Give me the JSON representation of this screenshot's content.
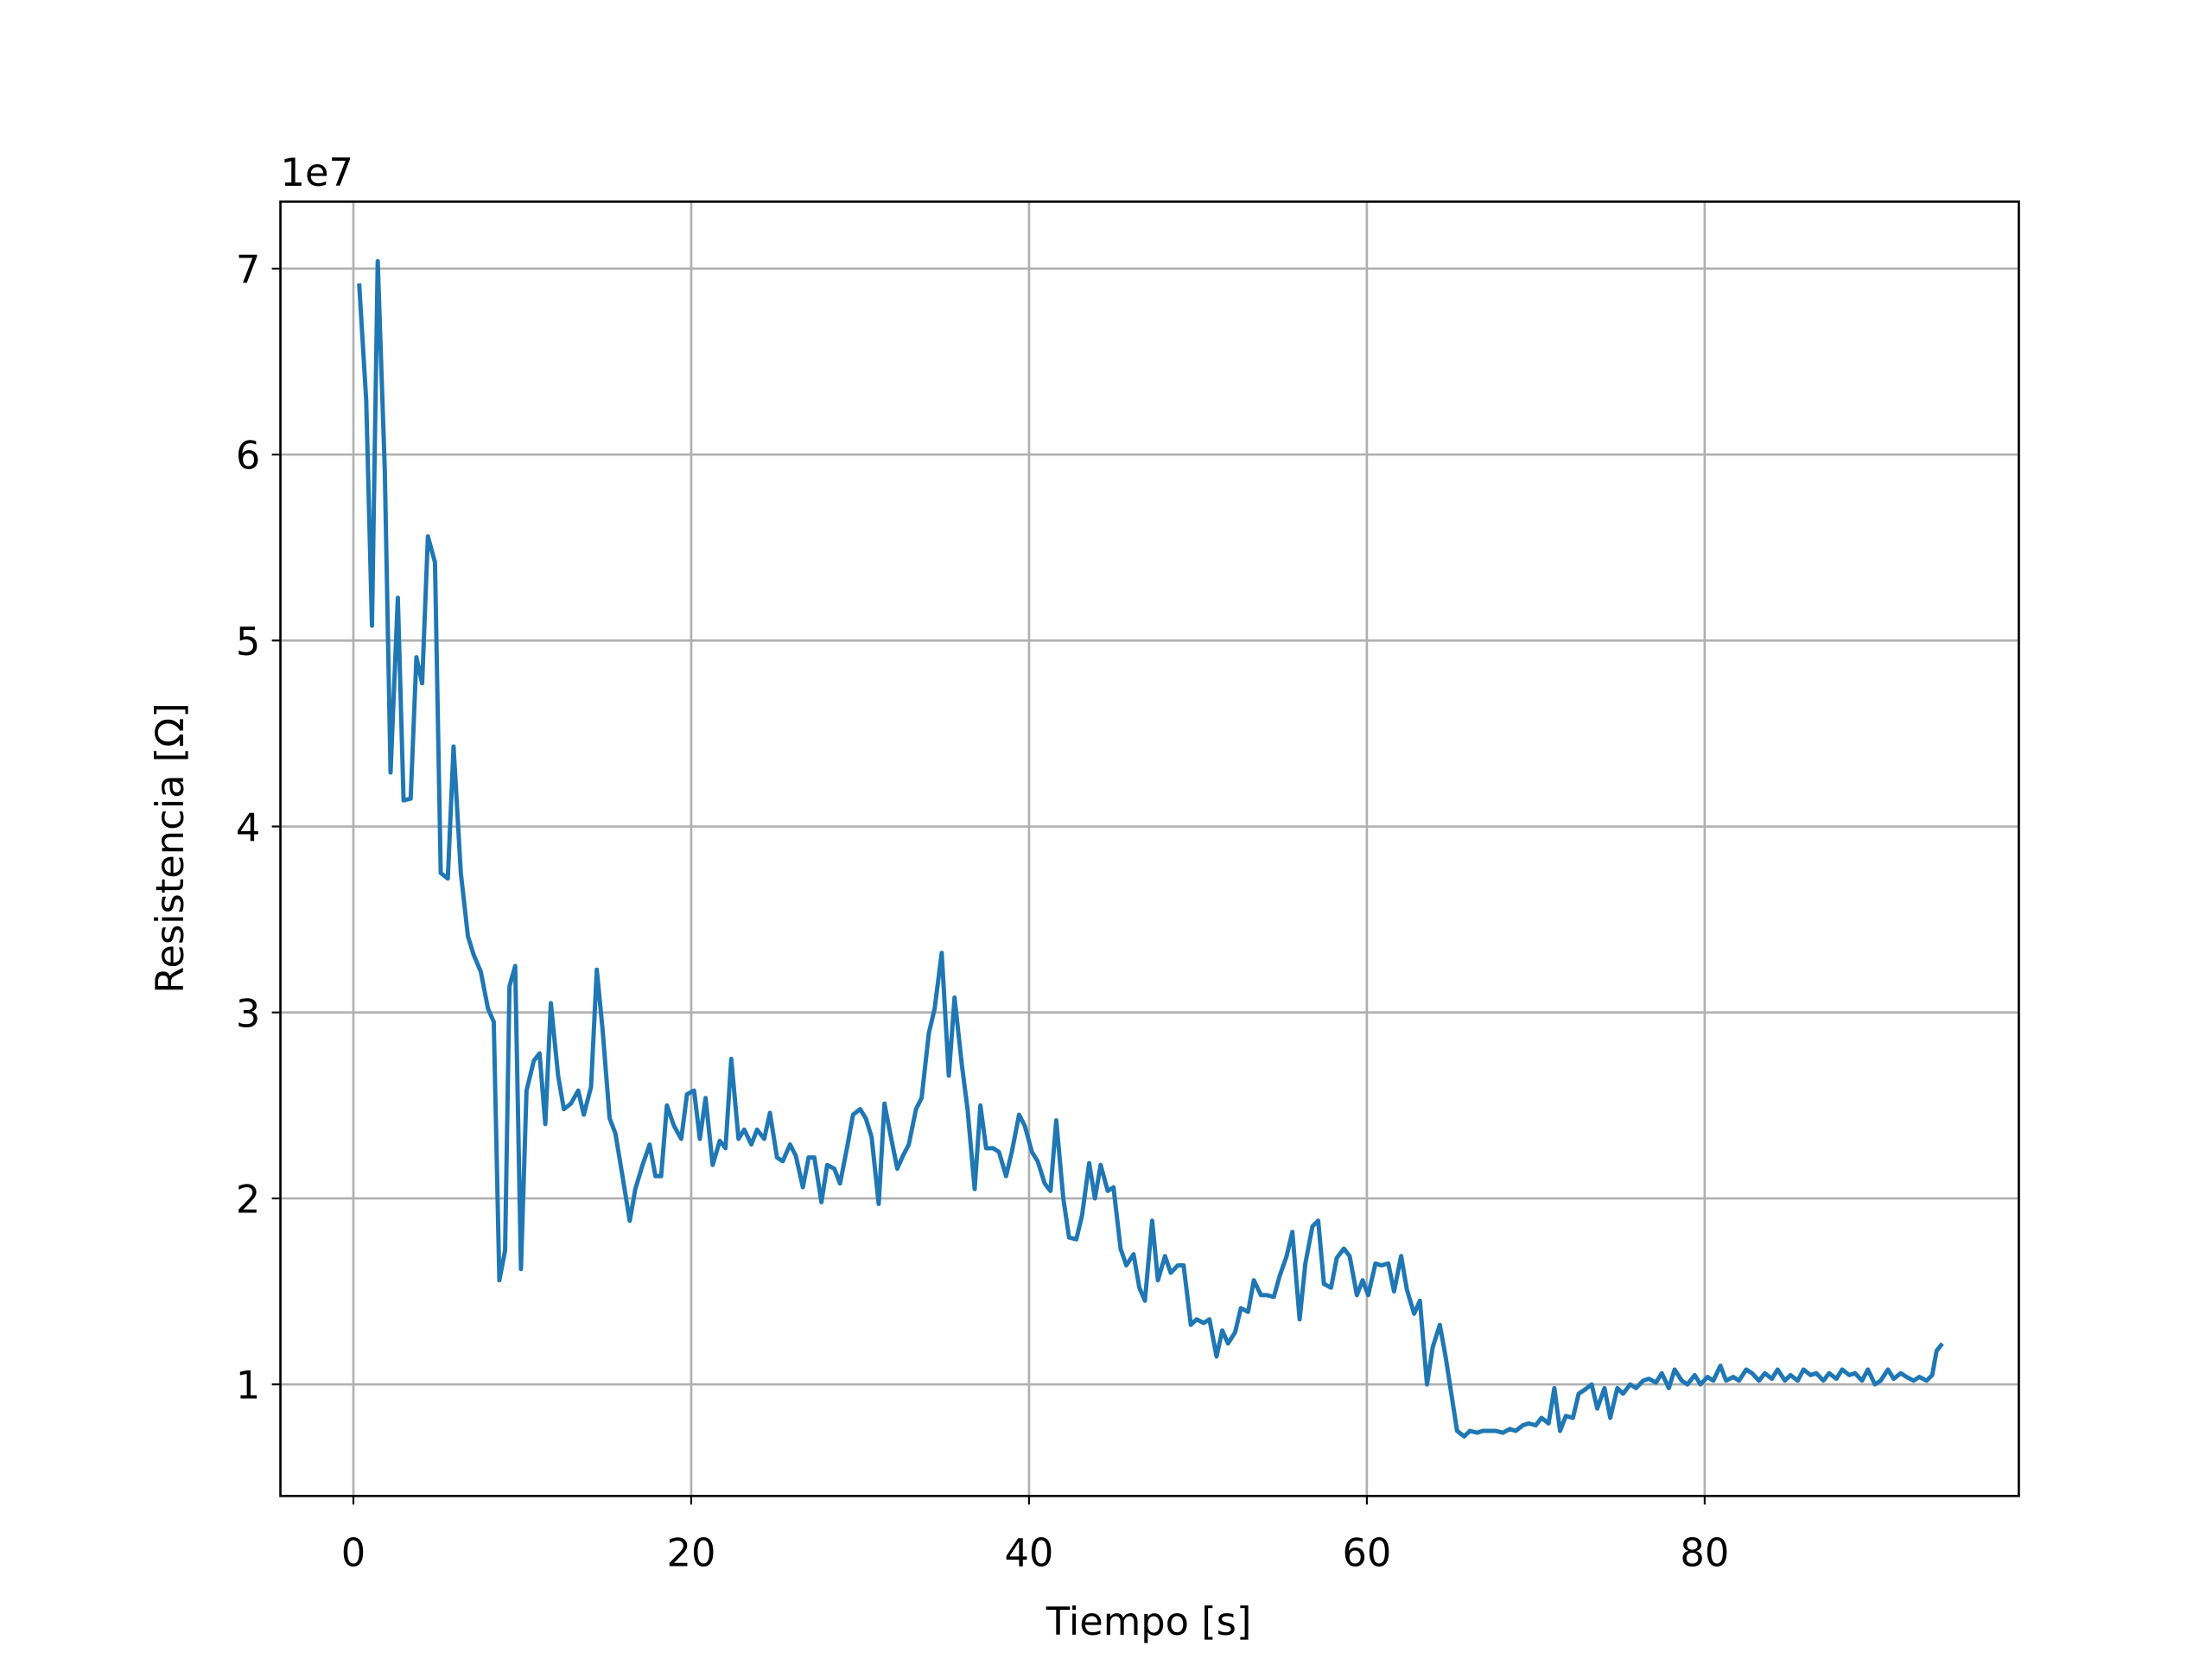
{
  "chart_data": {
    "type": "line",
    "x_label": "Tiempo [s]",
    "y_label": "Resistencia [Ω]",
    "y_offset_label": "1e7",
    "xlim": [
      -4.32,
      98.6
    ],
    "ylim": [
      0.4,
      7.36
    ],
    "xticks": [
      0,
      20,
      40,
      60,
      80
    ],
    "yticks": [
      1,
      2,
      3,
      4,
      5,
      6,
      7
    ],
    "grid": true,
    "x": [
      0.34,
      0.76,
      1.1,
      1.44,
      1.86,
      2.2,
      2.63,
      2.97,
      3.39,
      3.73,
      4.07,
      4.41,
      4.83,
      5.17,
      5.59,
      5.93,
      6.36,
      6.78,
      7.12,
      7.54,
      7.97,
      8.31,
      8.64,
      8.98,
      9.24,
      9.58,
      9.92,
      10.25,
      10.68,
      11.02,
      11.36,
      11.69,
      12.12,
      12.46,
      12.88,
      13.31,
      13.64,
      14.07,
      14.41,
      14.75,
      15.17,
      15.51,
      15.93,
      16.36,
      16.69,
      17.12,
      17.54,
      17.88,
      18.22,
      18.56,
      18.98,
      19.41,
      19.75,
      20.17,
      20.51,
      20.85,
      21.27,
      21.69,
      22.03,
      22.37,
      22.8,
      23.14,
      23.56,
      23.9,
      24.32,
      24.66,
      25.08,
      25.42,
      25.85,
      26.19,
      26.61,
      26.95,
      27.29,
      27.71,
      28.05,
      28.47,
      28.81,
      29.24,
      29.58,
      30.0,
      30.34,
      30.68,
      31.1,
      31.44,
      31.78,
      32.2,
      32.54,
      32.88,
      33.31,
      33.64,
      34.07,
      34.41,
      34.83,
      35.25,
      35.59,
      36.02,
      36.36,
      36.78,
      37.12,
      37.46,
      37.88,
      38.22,
      38.64,
      38.98,
      39.41,
      39.75,
      40.17,
      40.51,
      40.93,
      41.27,
      41.61,
      42.03,
      42.37,
      42.8,
      43.14,
      43.56,
      43.9,
      44.24,
      44.66,
      45.0,
      45.42,
      45.76,
      46.19,
      46.53,
      46.86,
      47.29,
      47.63,
      48.05,
      48.39,
      48.81,
      49.15,
      49.58,
      49.92,
      50.34,
      50.68,
      51.1,
      51.44,
      51.78,
      52.2,
      52.54,
      52.97,
      53.31,
      53.73,
      54.07,
      54.49,
      54.83,
      55.25,
      55.59,
      56.02,
      56.36,
      56.78,
      57.12,
      57.46,
      57.88,
      58.22,
      58.64,
      58.98,
      59.41,
      59.75,
      60.08,
      60.51,
      60.85,
      61.27,
      61.61,
      62.03,
      62.37,
      62.8,
      63.14,
      63.56,
      63.9,
      64.32,
      64.66,
      65.0,
      65.34,
      65.76,
      66.1,
      66.53,
      66.86,
      67.29,
      67.63,
      68.05,
      68.47,
      68.81,
      69.24,
      69.58,
      70.0,
      70.34,
      70.76,
      71.1,
      71.44,
      71.78,
      72.2,
      72.54,
      72.88,
      73.31,
      73.64,
      74.07,
      74.41,
      74.83,
      75.17,
      75.59,
      75.93,
      76.36,
      76.69,
      77.12,
      77.46,
      77.88,
      78.22,
      78.64,
      78.98,
      79.41,
      79.75,
      80.17,
      80.51,
      80.93,
      81.27,
      81.69,
      82.03,
      82.46,
      82.8,
      83.22,
      83.56,
      83.98,
      84.32,
      84.75,
      85.08,
      85.51,
      85.85,
      86.27,
      86.61,
      87.03,
      87.37,
      87.8,
      88.14,
      88.56,
      88.9,
      89.32,
      89.66,
      90.08,
      90.42,
      90.85,
      91.19,
      91.61,
      91.95,
      92.37,
      92.71,
      93.14,
      93.47,
      93.73,
      94.07
    ],
    "series": [
      {
        "color": "#1f77b4",
        "values": [
          6.92,
          6.29,
          5.08,
          7.04,
          5.91,
          4.29,
          5.23,
          4.14,
          4.15,
          4.91,
          4.77,
          5.56,
          5.42,
          3.75,
          3.72,
          4.43,
          3.75,
          3.41,
          3.31,
          3.22,
          3.02,
          2.95,
          1.56,
          1.72,
          3.14,
          3.25,
          1.62,
          2.58,
          2.74,
          2.78,
          2.4,
          3.05,
          2.66,
          2.48,
          2.51,
          2.58,
          2.45,
          2.6,
          3.23,
          2.91,
          2.43,
          2.35,
          2.12,
          1.88,
          2.05,
          2.18,
          2.29,
          2.12,
          2.12,
          2.5,
          2.39,
          2.32,
          2.56,
          2.58,
          2.32,
          2.54,
          2.18,
          2.31,
          2.27,
          2.75,
          2.32,
          2.37,
          2.29,
          2.37,
          2.32,
          2.46,
          2.22,
          2.2,
          2.29,
          2.23,
          2.06,
          2.22,
          2.22,
          1.98,
          2.18,
          2.16,
          2.08,
          2.28,
          2.45,
          2.48,
          2.43,
          2.33,
          1.97,
          2.51,
          2.35,
          2.16,
          2.23,
          2.29,
          2.48,
          2.54,
          2.89,
          3.02,
          3.32,
          2.66,
          3.08,
          2.72,
          2.48,
          2.05,
          2.5,
          2.27,
          2.27,
          2.25,
          2.12,
          2.25,
          2.45,
          2.39,
          2.25,
          2.2,
          2.08,
          2.04,
          2.42,
          2.0,
          1.79,
          1.78,
          1.91,
          2.19,
          2.0,
          2.18,
          2.04,
          2.06,
          1.73,
          1.64,
          1.7,
          1.52,
          1.45,
          1.88,
          1.56,
          1.69,
          1.6,
          1.64,
          1.64,
          1.32,
          1.35,
          1.33,
          1.35,
          1.15,
          1.29,
          1.22,
          1.28,
          1.41,
          1.39,
          1.56,
          1.48,
          1.48,
          1.47,
          1.58,
          1.69,
          1.82,
          1.35,
          1.65,
          1.85,
          1.88,
          1.54,
          1.52,
          1.68,
          1.73,
          1.69,
          1.48,
          1.56,
          1.48,
          1.65,
          1.64,
          1.65,
          1.5,
          1.69,
          1.51,
          1.38,
          1.45,
          1.0,
          1.2,
          1.32,
          1.15,
          0.95,
          0.75,
          0.72,
          0.75,
          0.74,
          0.75,
          0.75,
          0.75,
          0.74,
          0.76,
          0.75,
          0.78,
          0.79,
          0.78,
          0.82,
          0.79,
          0.98,
          0.75,
          0.83,
          0.82,
          0.95,
          0.97,
          1.0,
          0.87,
          0.98,
          0.82,
          0.98,
          0.95,
          1.0,
          0.98,
          1.02,
          1.03,
          1.01,
          1.06,
          0.98,
          1.08,
          1.02,
          1.0,
          1.05,
          1.0,
          1.04,
          1.02,
          1.1,
          1.02,
          1.04,
          1.02,
          1.08,
          1.06,
          1.02,
          1.06,
          1.03,
          1.08,
          1.02,
          1.05,
          1.02,
          1.08,
          1.05,
          1.06,
          1.02,
          1.06,
          1.03,
          1.08,
          1.05,
          1.06,
          1.02,
          1.08,
          1.0,
          1.02,
          1.08,
          1.03,
          1.06,
          1.04,
          1.02,
          1.04,
          1.02,
          1.05,
          1.18,
          1.22
        ]
      }
    ]
  }
}
